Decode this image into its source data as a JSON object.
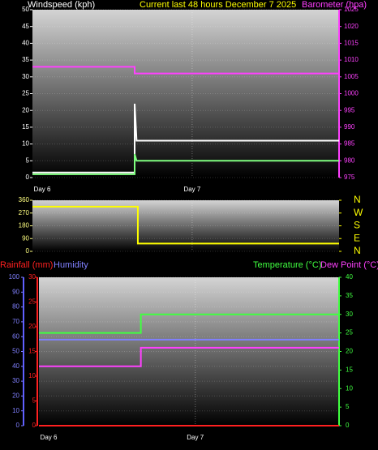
{
  "chart_data": [
    {
      "type": "line",
      "title": "Current last 48 hours December 7 2025",
      "ylabel": "Windspeed (kph)",
      "y2label": "Barometer (hpa)",
      "xlim": [
        0,
        48
      ],
      "xticks": [
        {
          "value": 0,
          "label": "Day 6"
        },
        {
          "value": 25,
          "label": "Day 7"
        }
      ],
      "ylim": [
        0,
        50
      ],
      "yticks": [
        0,
        5,
        10,
        15,
        20,
        25,
        30,
        35,
        40,
        45,
        50
      ],
      "y2lim": [
        975,
        1025
      ],
      "y2ticks": [
        975,
        980,
        985,
        990,
        995,
        1000,
        1005,
        1010,
        1015,
        1020,
        1025
      ],
      "grid": true,
      "series": [
        {
          "color": "#ffffff",
          "x": [
            0,
            16,
            16,
            16.3,
            48
          ],
          "values": [
            1.5,
            1.5,
            22,
            11,
            11
          ]
        },
        {
          "color": "#80ff80",
          "x": [
            0,
            16,
            16,
            16.3,
            48
          ],
          "values": [
            1,
            1,
            7,
            5,
            5
          ]
        },
        {
          "color": "#ff40ff",
          "axis": "y2",
          "x": [
            0,
            16,
            16,
            48
          ],
          "values": [
            1008,
            1008,
            1006,
            1006
          ]
        }
      ]
    },
    {
      "type": "line",
      "xlim": [
        0,
        48
      ],
      "xticks": [
        {
          "value": 25,
          "label": ""
        }
      ],
      "ylim": [
        0,
        360
      ],
      "yticks": [
        0,
        90,
        180,
        270,
        360
      ],
      "y2lim": [
        0,
        360
      ],
      "y2ticks": [
        {
          "value": 360,
          "label": "N"
        },
        {
          "value": 270,
          "label": "W"
        },
        {
          "value": 180,
          "label": "S"
        },
        {
          "value": 90,
          "label": "E"
        },
        {
          "value": 0,
          "label": "N"
        }
      ],
      "grid": true,
      "series": [
        {
          "color": "#ffff00",
          "x": [
            0,
            16.5,
            16.5,
            48
          ],
          "values": [
            315,
            315,
            55,
            55
          ]
        }
      ]
    },
    {
      "type": "line",
      "xlim": [
        0,
        48
      ],
      "xticks": [
        {
          "value": 0,
          "label": "Day 6"
        },
        {
          "value": 25,
          "label": "Day 7"
        }
      ],
      "ylim": [
        0,
        100
      ],
      "yticks": [
        0,
        10,
        20,
        30,
        40,
        50,
        60,
        70,
        80,
        90,
        100
      ],
      "y3lim": [
        0,
        30
      ],
      "y3ticks": [
        0,
        5,
        10,
        15,
        20,
        25,
        30
      ],
      "y2lim": [
        0,
        40
      ],
      "y2ticks": [
        0,
        5,
        10,
        15,
        20,
        25,
        30,
        35,
        40
      ],
      "grid": true,
      "series": [
        {
          "name": "Rainfall (mm)",
          "color": "#ff2020",
          "axis": "y3",
          "x": [
            0,
            48
          ],
          "values": [
            0,
            0
          ]
        },
        {
          "name": "Humidity",
          "color": "#8080ff",
          "x": [
            0,
            48
          ],
          "values": [
            58,
            58
          ]
        },
        {
          "name": "Temperature (°C)",
          "color": "#40ff40",
          "axis": "y2",
          "x": [
            0,
            16.3,
            16.3,
            48
          ],
          "values": [
            25,
            25,
            30,
            30
          ]
        },
        {
          "name": "Dew Point (°C)",
          "color": "#ff40ff",
          "axis": "y2",
          "x": [
            0,
            16.3,
            16.3,
            48
          ],
          "values": [
            16,
            16,
            21,
            21
          ]
        }
      ]
    }
  ]
}
